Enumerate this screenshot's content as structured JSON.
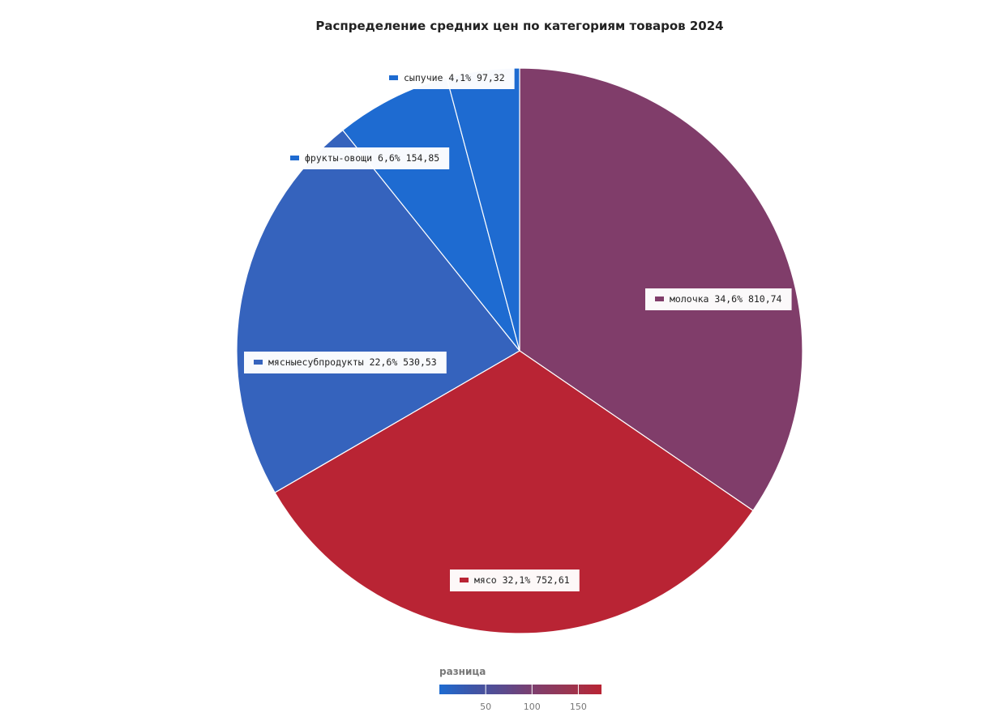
{
  "chart_data": {
    "type": "pie",
    "title": "Распределение средних цен по категориям товаров 2024",
    "slices": [
      {
        "name": "молочка",
        "value": 810.74,
        "percent": "34,6%",
        "value_label": "810,74",
        "color": "#803d6a"
      },
      {
        "name": "мясо",
        "value": 752.61,
        "percent": "32,1%",
        "value_label": "752,61",
        "color": "#b92434"
      },
      {
        "name": "мясныесубпродукты",
        "value": 530.53,
        "percent": "22,6%",
        "value_label": "530,53",
        "color": "#3563bd"
      },
      {
        "name": "фрукты-овощи",
        "value": 154.85,
        "percent": "6,6%",
        "value_label": "154,85",
        "color": "#1e6bd1"
      },
      {
        "name": "сыпучие",
        "value": 97.32,
        "percent": "4,1%",
        "value_label": "97,32",
        "color": "#1e6bd1"
      }
    ],
    "legend": {
      "title": "разница",
      "ticks": [
        50,
        100,
        150
      ],
      "range": [
        0,
        175
      ],
      "colors": [
        "#1e6bd1",
        "#3d56a8",
        "#5c4a8c",
        "#803d6a",
        "#9a3550",
        "#b92434"
      ]
    }
  }
}
